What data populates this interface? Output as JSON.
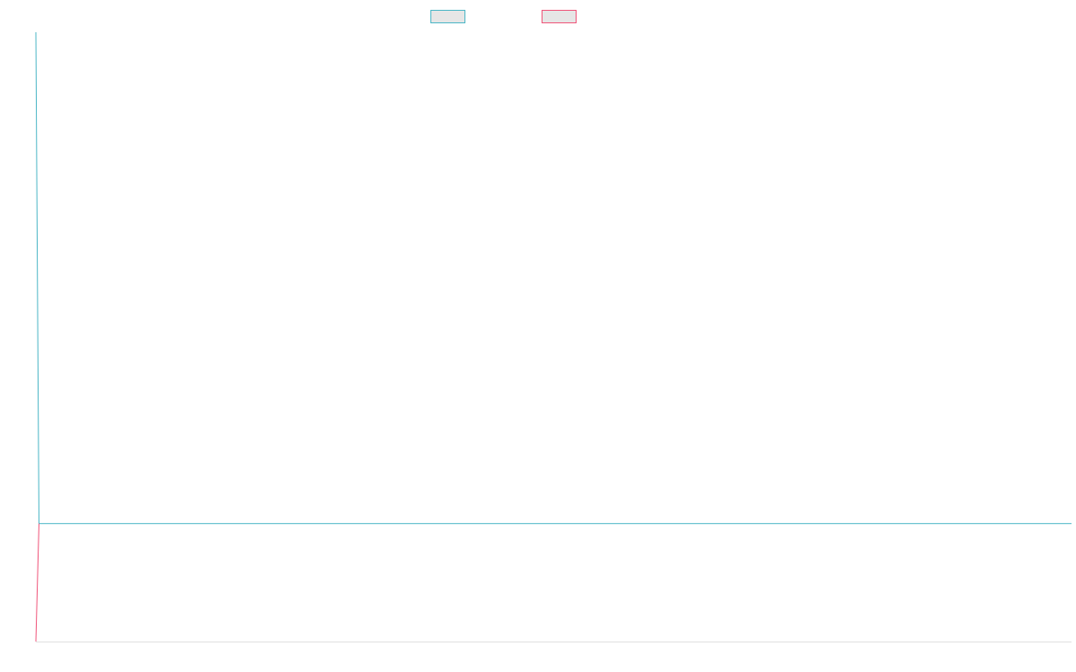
{
  "chart_data": {
    "type": "line",
    "title": "",
    "xlabel": "",
    "ylabel": "",
    "legend_position": "top-center",
    "grid": false,
    "series": [
      {
        "name": "",
        "color": "#4bb6c6",
        "points": [
          [
            0,
            100
          ],
          [
            0.3,
            0
          ],
          [
            100,
            0
          ]
        ]
      },
      {
        "name": "",
        "color": "#f0557a",
        "points": [
          [
            0,
            -24
          ],
          [
            0.3,
            0
          ]
        ]
      }
    ],
    "xlim": [
      0,
      100
    ],
    "ylim": [
      -24,
      100
    ]
  }
}
